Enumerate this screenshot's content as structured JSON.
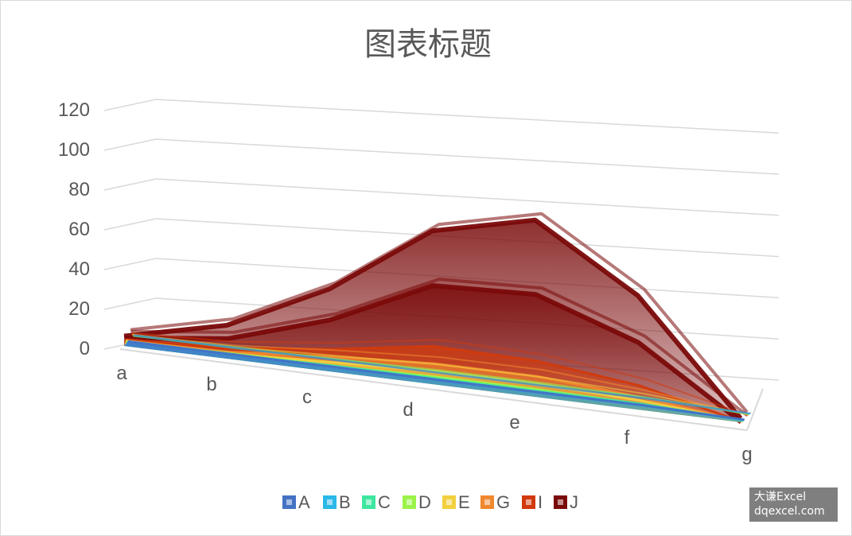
{
  "chart_data": {
    "type": "area",
    "variant": "3d-area",
    "title": "图表标题",
    "categories": [
      "a",
      "b",
      "c",
      "d",
      "e",
      "f",
      "g"
    ],
    "yticks": [
      "0",
      "20",
      "40",
      "60",
      "80",
      "100",
      "120"
    ],
    "ylim": [
      0,
      120
    ],
    "grid": true,
    "legend_position": "bottom",
    "series": [
      {
        "name": "A",
        "color": "#4472C4",
        "values": [
          1,
          1,
          1,
          1,
          1,
          1,
          0
        ]
      },
      {
        "name": "B",
        "color": "#2BB7E8",
        "values": [
          1,
          1,
          1,
          1,
          1,
          1,
          0
        ]
      },
      {
        "name": "C",
        "color": "#3EE6A0",
        "values": [
          1,
          1,
          2,
          2,
          2,
          2,
          0
        ]
      },
      {
        "name": "D",
        "color": "#9CF34A",
        "values": [
          1,
          2,
          2,
          3,
          3,
          2,
          0
        ]
      },
      {
        "name": "E",
        "color": "#F2D040",
        "values": [
          2,
          2,
          4,
          6,
          6,
          4,
          0
        ]
      },
      {
        "name": "G",
        "color": "#F0882F",
        "values": [
          2,
          3,
          7,
          10,
          10,
          6,
          0
        ]
      },
      {
        "name": "I",
        "color": "#D13A0C",
        "values": [
          3,
          5,
          11,
          19,
          18,
          12,
          0
        ]
      },
      {
        "name": "J",
        "color": "#7A0A0A",
        "values": [
          4,
          10,
          26,
          50,
          52,
          34,
          0
        ]
      },
      {
        "name": "",
        "color": "#7A0A0A",
        "values": [
          5,
          17,
          42,
          78,
          90,
          58,
          2
        ]
      }
    ]
  },
  "watermark": {
    "line1": "大谦Excel",
    "line2": "dqexcel.com"
  }
}
